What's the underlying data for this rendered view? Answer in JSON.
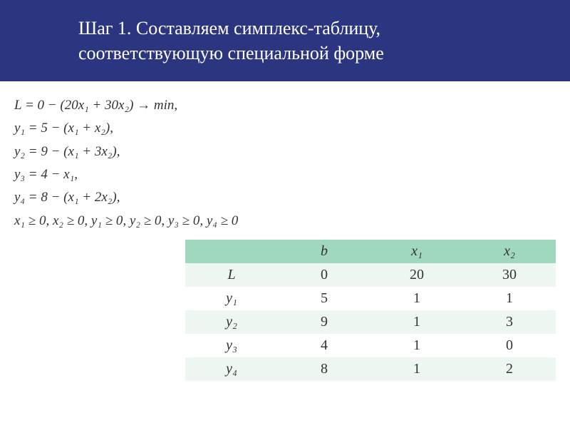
{
  "header": {
    "line1": "Шаг 1. Составляем симплекс-таблицу,",
    "line2": "соответствующую специальной форме"
  },
  "equations": [
    "L = 0 − (20x₁ + 30x₂) → min,",
    "y₁ = 5 − (x₁ + x₂),",
    "y₂ = 9 − (x₁ + 3x₂),",
    "y₃ = 4 − x₁,",
    "y₄ = 8 − (x₁ + 2x₂),",
    "x₁ ≥ 0, x₂ ≥ 0,  y₁ ≥ 0, y₂ ≥ 0, y₃ ≥ 0, y₄ ≥ 0"
  ],
  "table": {
    "headers": [
      "",
      "b",
      "x₁",
      "x₂"
    ],
    "rows": [
      {
        "label": "L",
        "cells": [
          "0",
          "20",
          "30"
        ]
      },
      {
        "label": "y₁",
        "cells": [
          "5",
          "1",
          "1"
        ]
      },
      {
        "label": "y₂",
        "cells": [
          "9",
          "1",
          "3"
        ]
      },
      {
        "label": "y₃",
        "cells": [
          "4",
          "1",
          "0"
        ]
      },
      {
        "label": "y₄",
        "cells": [
          "8",
          "1",
          "2"
        ]
      }
    ]
  },
  "style": {
    "header_bg": "#2c3680",
    "header_fg": "#ffffff",
    "table_header_bg": "#9fd7bf",
    "table_row_odd_bg": "#edf6f1",
    "table_row_even_bg": "#ffffff",
    "body_font_size_pt": 14,
    "header_font_size_pt": 20
  }
}
